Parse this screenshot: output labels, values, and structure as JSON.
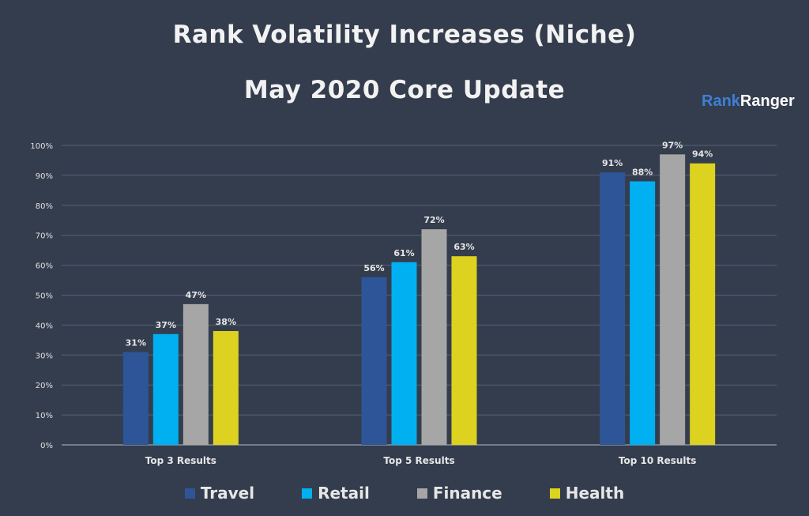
{
  "colors": {
    "background": "#343d4d",
    "grid": "#566173",
    "axis_text": "#e0e0e0",
    "label_text": "#e6e6e6"
  },
  "logo": {
    "part1": "Rank",
    "part2": "Ranger"
  },
  "chart_data": {
    "type": "bar",
    "title": "Rank Volatility Increases (Niche)",
    "subtitle": "May 2020 Core Update",
    "categories": [
      "Top 3 Results",
      "Top 5 Results",
      "Top 10 Results"
    ],
    "series": [
      {
        "name": "Travel",
        "values": [
          31,
          56,
          91
        ],
        "color": "#2e5597"
      },
      {
        "name": "Retail",
        "values": [
          37,
          61,
          88
        ],
        "color": "#00b0f0"
      },
      {
        "name": "Finance",
        "values": [
          47,
          72,
          97
        ],
        "color": "#a6a6a6"
      },
      {
        "name": "Health",
        "values": [
          38,
          63,
          94
        ],
        "color": "#ddd21f"
      }
    ],
    "ylim": [
      0,
      100
    ],
    "yticks": [
      0,
      10,
      20,
      30,
      40,
      50,
      60,
      70,
      80,
      90,
      100
    ],
    "ytick_suffix": "%",
    "value_suffix": "%",
    "grid": true,
    "legend_position": "bottom"
  }
}
